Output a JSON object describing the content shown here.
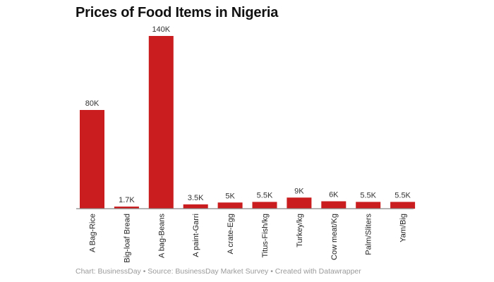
{
  "chart_data": {
    "type": "bar",
    "title": "Prices of Food Items in Nigeria",
    "categories": [
      "A Bag-Rice",
      "Big-loaf Bread",
      "A bag-Beans",
      "A paint-Garri",
      "A crate-Egg",
      "Titus-Fish/kg",
      "Turkey/kg",
      "Cow meat/Kg",
      "Palm/Sliters",
      "Yam/Big"
    ],
    "values": [
      80000,
      1700,
      140000,
      3500,
      5000,
      5500,
      9000,
      6000,
      5500,
      5500
    ],
    "value_labels": [
      "80K",
      "1.7K",
      "140K",
      "3.5K",
      "5K",
      "5.5K",
      "9K",
      "6K",
      "5.5K",
      "5.5K"
    ],
    "xlabel": "",
    "ylabel": "",
    "ylim": [
      0,
      140000
    ],
    "grid": false,
    "bar_color": "#c91d1f"
  },
  "footer": "Chart: BusinessDay • Source: BusinessDay Market Survey • Created with Datawrapper"
}
